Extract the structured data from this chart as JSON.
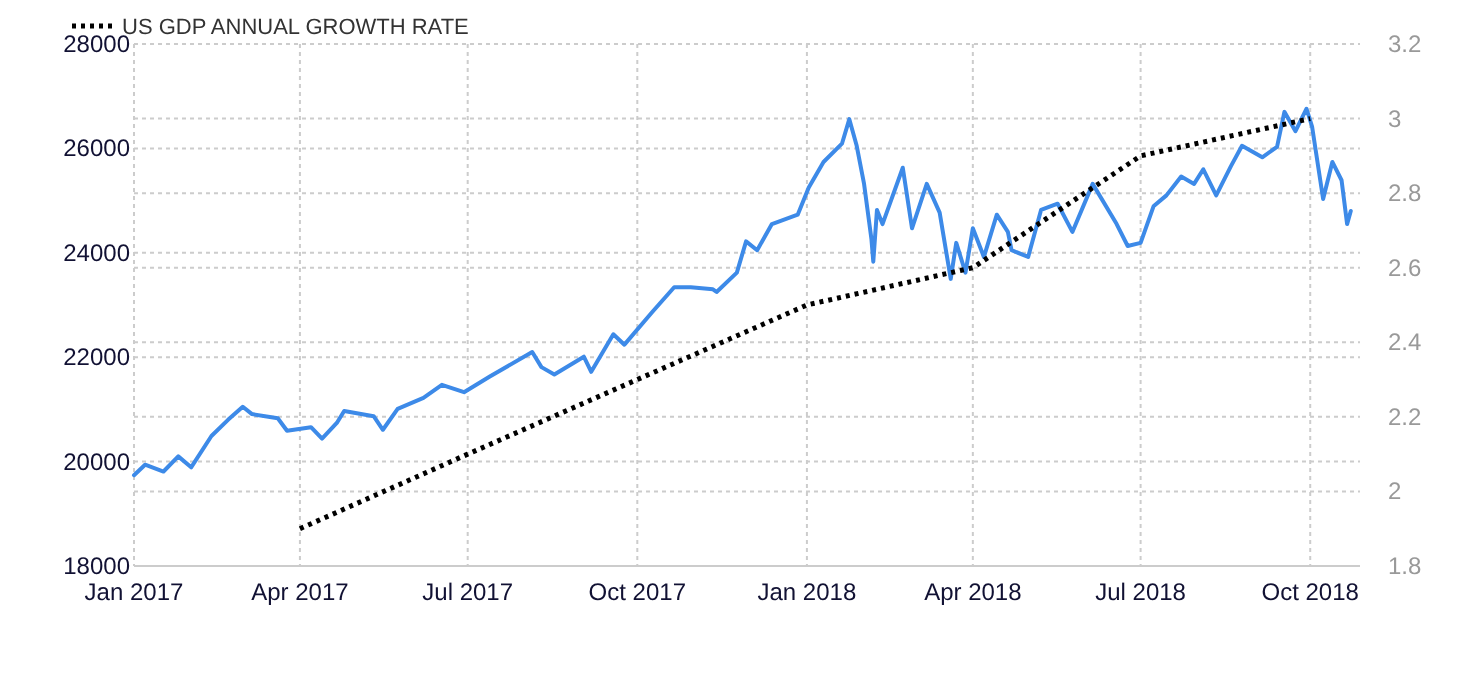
{
  "chart_data": {
    "type": "line",
    "xlim": [
      "2017-01-01",
      "2018-10-28"
    ],
    "xticks": [
      {
        "value": "2017-01-01",
        "label": "Jan 2017"
      },
      {
        "value": "2017-04-01",
        "label": "Apr 2017"
      },
      {
        "value": "2017-07-01",
        "label": "Jul 2017"
      },
      {
        "value": "2017-10-01",
        "label": "Oct 2017"
      },
      {
        "value": "2018-01-01",
        "label": "Jan 2018"
      },
      {
        "value": "2018-04-01",
        "label": "Apr 2018"
      },
      {
        "value": "2018-07-01",
        "label": "Jul 2018"
      },
      {
        "value": "2018-10-01",
        "label": "Oct 2018"
      }
    ],
    "ylim": [
      18000,
      28000
    ],
    "yticks": [
      18000,
      20000,
      22000,
      24000,
      26000,
      28000
    ],
    "y2lim": [
      1.8,
      3.2
    ],
    "y2ticks": [
      1.8,
      2,
      2.2,
      2.4,
      2.6,
      2.8,
      3,
      3.2
    ],
    "grid": true,
    "legend": "top left",
    "series": [
      {
        "color": "#3d8ae8",
        "line_style": "solid",
        "x": [
          "2017-01-01",
          "2017-01-07",
          "2017-01-17",
          "2017-01-25",
          "2017-02-01",
          "2017-02-12",
          "2017-02-21",
          "2017-03-01",
          "2017-03-06",
          "2017-03-20",
          "2017-03-25",
          "2017-04-07",
          "2017-04-13",
          "2017-04-21",
          "2017-04-25",
          "2017-05-11",
          "2017-05-16",
          "2017-05-24",
          "2017-06-07",
          "2017-06-17",
          "2017-06-29",
          "2017-07-13",
          "2017-08-05",
          "2017-08-10",
          "2017-08-17",
          "2017-09-02",
          "2017-09-06",
          "2017-09-18",
          "2017-09-24",
          "2017-10-09",
          "2017-10-21",
          "2017-10-30",
          "2017-11-11",
          "2017-11-13",
          "2017-11-24",
          "2017-11-29",
          "2017-12-05",
          "2017-12-13",
          "2017-12-27",
          "2018-01-02",
          "2018-01-10",
          "2018-01-20",
          "2018-01-24",
          "2018-01-28",
          "2018-02-01",
          "2018-02-05",
          "2018-02-06",
          "2018-02-08",
          "2018-02-11",
          "2018-02-22",
          "2018-02-27",
          "2018-03-07",
          "2018-03-14",
          "2018-03-20",
          "2018-03-23",
          "2018-03-28",
          "2018-04-01",
          "2018-04-07",
          "2018-04-14",
          "2018-04-20",
          "2018-04-22",
          "2018-05-01",
          "2018-05-08",
          "2018-05-17",
          "2018-05-25",
          "2018-06-05",
          "2018-06-18",
          "2018-06-24",
          "2018-07-01",
          "2018-07-08",
          "2018-07-15",
          "2018-07-23",
          "2018-07-30",
          "2018-08-04",
          "2018-08-11",
          "2018-08-19",
          "2018-08-25",
          "2018-09-05",
          "2018-09-13",
          "2018-09-17",
          "2018-09-23",
          "2018-09-29",
          "2018-10-02",
          "2018-10-08",
          "2018-10-13",
          "2018-10-18",
          "2018-10-21",
          "2018-10-23"
        ],
        "values": [
          19740,
          19940,
          19810,
          20100,
          19890,
          20490,
          20800,
          21050,
          20910,
          20830,
          20590,
          20660,
          20440,
          20740,
          20970,
          20870,
          20610,
          21010,
          21220,
          21470,
          21330,
          21630,
          22100,
          21810,
          21670,
          22010,
          21720,
          22440,
          22240,
          22860,
          23340,
          23340,
          23300,
          23250,
          23620,
          24220,
          24050,
          24550,
          24730,
          25250,
          25740,
          26090,
          26560,
          26050,
          25320,
          24260,
          23830,
          24820,
          24550,
          25630,
          24470,
          25320,
          24770,
          23500,
          24190,
          23620,
          24470,
          23920,
          24730,
          24400,
          24050,
          23920,
          24820,
          24940,
          24400,
          25320,
          24550,
          24130,
          24190,
          24890,
          25100,
          25460,
          25320,
          25600,
          25100,
          25660,
          26050,
          25830,
          26030,
          26700,
          26330,
          26760,
          26420,
          25030,
          25740,
          25390,
          24550,
          24800
        ]
      },
      {
        "name": "US GDP ANNUAL GROWTH RATE",
        "color": "#000000",
        "axis": "y2",
        "line_style": "dotted",
        "x": [
          "2017-04-01",
          "2017-07-01",
          "2017-10-01",
          "2018-01-01",
          "2018-04-01",
          "2018-07-01",
          "2018-10-01"
        ],
        "values": [
          1.9,
          2.1,
          2.3,
          2.5,
          2.6,
          2.9,
          3.0
        ]
      }
    ]
  }
}
